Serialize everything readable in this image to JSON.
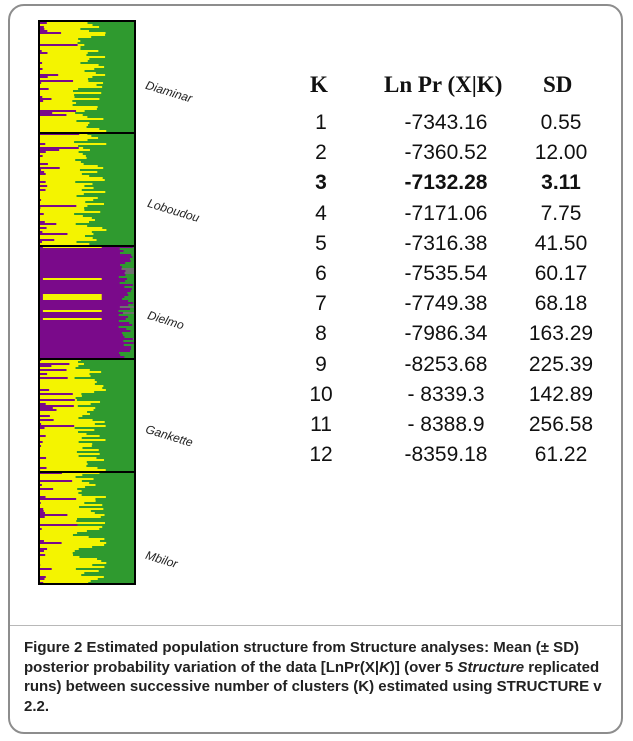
{
  "figure": {
    "populations": [
      "Diaminar",
      "Loboudou",
      "Dielmo",
      "Gankette",
      "Mbilor"
    ],
    "colors": {
      "green": "#2f9a2f",
      "yellow": "#f4f400",
      "purple": "#7a0a8a",
      "grey": "#6f6f6f",
      "border": "#000000"
    },
    "table": {
      "headers": {
        "k": "K",
        "ln": "Ln Pr (X|K)",
        "sd": "SD"
      },
      "rows": [
        {
          "k": "1",
          "ln": "-7343.16",
          "sd": "0.55"
        },
        {
          "k": "2",
          "ln": "-7360.52",
          "sd": "12.00"
        },
        {
          "k": "3",
          "ln": "-7132.28",
          "sd": "3.11",
          "bold": true
        },
        {
          "k": "4",
          "ln": "-7171.06",
          "sd": "7.75"
        },
        {
          "k": "5",
          "ln": "-7316.38",
          "sd": "41.50"
        },
        {
          "k": "6",
          "ln": "-7535.54",
          "sd": "60.17"
        },
        {
          "k": "7",
          "ln": "-7749.38",
          "sd": "68.18"
        },
        {
          "k": "8",
          "ln": "-7986.34",
          "sd": "163.29"
        },
        {
          "k": "9",
          "ln": "-8253.68",
          "sd": "225.39"
        },
        {
          "k": "10",
          "ln": "- 8339.3",
          "sd": "142.89"
        },
        {
          "k": "11",
          "ln": "- 8388.9",
          "sd": "256.58"
        },
        {
          "k": "12",
          "ln": "-8359.18",
          "sd": "61.22"
        }
      ]
    },
    "caption": {
      "label": "Figure 2",
      "part1": "Estimated population structure from Structure analyses: Mean (± SD) posterior probability variation of the data [LnPr(X|",
      "italic1": "K",
      "part2": ")] (over 5 ",
      "italic2": "Structure",
      "part3": " replicated runs) between successive number of clusters (K) estimated using STRUCTURE v 2.2."
    }
  }
}
